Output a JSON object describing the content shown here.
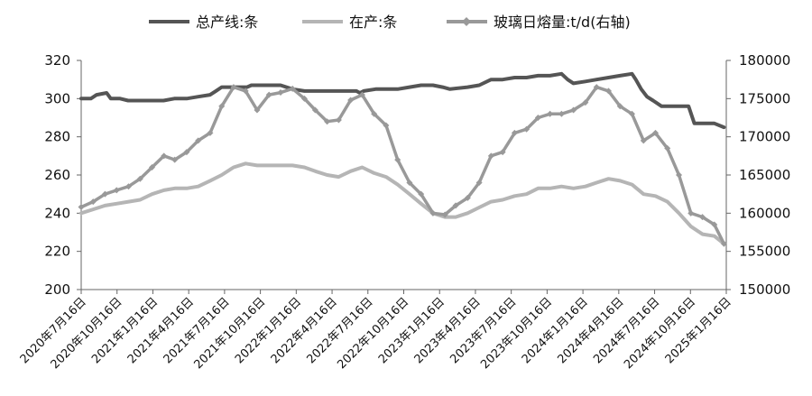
{
  "chart_data": {
    "type": "line",
    "title": "",
    "xlabel": "",
    "ylabel": "",
    "y2label": "",
    "legend_position": "top",
    "grid": false,
    "left_axis": {
      "ylim": [
        200,
        320
      ],
      "ticks": [
        "200",
        "220",
        "240",
        "260",
        "280",
        "300",
        "320"
      ]
    },
    "right_axis": {
      "ylim": [
        150000,
        180000
      ],
      "ticks": [
        "150000",
        "155000",
        "160000",
        "165000",
        "170000",
        "175000",
        "180000"
      ]
    },
    "x_tick_labels": [
      "2020年7月16日",
      "2020年10月16日",
      "2021年1月16日",
      "2021年4月16日",
      "2021年7月16日",
      "2021年10月16日",
      "2022年1月16日",
      "2022年4月16日",
      "2022年7月16日",
      "2022年10月16日",
      "2023年1月16日",
      "2023年4月16日",
      "2023年7月16日",
      "2023年10月16日",
      "2024年1月16日",
      "2024年4月16日",
      "2024年7月16日",
      "2024年10月16日",
      "2025年1月16日"
    ],
    "series": [
      {
        "name": "总产线:条",
        "axis": "left",
        "color": "#555555",
        "points": [
          [
            "2020-07-16",
            300
          ],
          [
            "2020-08-10",
            300
          ],
          [
            "2020-08-25",
            302
          ],
          [
            "2020-09-20",
            303
          ],
          [
            "2020-10-01",
            300
          ],
          [
            "2020-10-25",
            300
          ],
          [
            "2020-11-15",
            299
          ],
          [
            "2021-01-16",
            299
          ],
          [
            "2021-02-15",
            299
          ],
          [
            "2021-03-15",
            300
          ],
          [
            "2021-04-16",
            300
          ],
          [
            "2021-05-16",
            301
          ],
          [
            "2021-06-16",
            302
          ],
          [
            "2021-07-01",
            304
          ],
          [
            "2021-07-16",
            306
          ],
          [
            "2021-08-20",
            306
          ],
          [
            "2021-09-20",
            306
          ],
          [
            "2021-10-01",
            307
          ],
          [
            "2021-11-16",
            307
          ],
          [
            "2021-12-16",
            307
          ],
          [
            "2022-01-16",
            305
          ],
          [
            "2022-02-16",
            304
          ],
          [
            "2022-04-16",
            304
          ],
          [
            "2022-05-16",
            304
          ],
          [
            "2022-07-01",
            304
          ],
          [
            "2022-07-10",
            303
          ],
          [
            "2022-07-20",
            304
          ],
          [
            "2022-08-20",
            305
          ],
          [
            "2022-09-16",
            305
          ],
          [
            "2022-10-16",
            305
          ],
          [
            "2022-11-16",
            306
          ],
          [
            "2022-12-16",
            307
          ],
          [
            "2023-01-16",
            307
          ],
          [
            "2023-02-10",
            306
          ],
          [
            "2023-03-01",
            305
          ],
          [
            "2023-04-16",
            306
          ],
          [
            "2023-05-16",
            307
          ],
          [
            "2023-06-16",
            310
          ],
          [
            "2023-07-16",
            310
          ],
          [
            "2023-08-16",
            311
          ],
          [
            "2023-09-16",
            311
          ],
          [
            "2023-10-16",
            312
          ],
          [
            "2023-11-16",
            312
          ],
          [
            "2023-12-16",
            313
          ],
          [
            "2024-01-01",
            310
          ],
          [
            "2024-01-16",
            308
          ],
          [
            "2024-02-16",
            309
          ],
          [
            "2024-03-16",
            310
          ],
          [
            "2024-04-16",
            311
          ],
          [
            "2024-05-16",
            312
          ],
          [
            "2024-06-16",
            313
          ],
          [
            "2024-06-26",
            310
          ],
          [
            "2024-07-10",
            305
          ],
          [
            "2024-07-25",
            301
          ],
          [
            "2024-08-10",
            299
          ],
          [
            "2024-09-01",
            296
          ],
          [
            "2024-10-01",
            296
          ],
          [
            "2024-10-16",
            296
          ],
          [
            "2024-11-10",
            296
          ],
          [
            "2024-11-25",
            287
          ],
          [
            "2025-01-16",
            287
          ],
          [
            "2025-02-10",
            285
          ]
        ]
      },
      {
        "name": "在产:条",
        "axis": "left",
        "color": "#b5b5b5",
        "points": [
          [
            "2020-07-16",
            240
          ],
          [
            "2020-08-16",
            242
          ],
          [
            "2020-09-16",
            244
          ],
          [
            "2020-10-16",
            245
          ],
          [
            "2020-11-16",
            246
          ],
          [
            "2020-12-16",
            247
          ],
          [
            "2021-01-16",
            250
          ],
          [
            "2021-02-16",
            252
          ],
          [
            "2021-03-16",
            253
          ],
          [
            "2021-04-16",
            253
          ],
          [
            "2021-05-16",
            254
          ],
          [
            "2021-06-16",
            257
          ],
          [
            "2021-07-16",
            260
          ],
          [
            "2021-08-16",
            264
          ],
          [
            "2021-09-16",
            266
          ],
          [
            "2021-10-16",
            265
          ],
          [
            "2021-11-16",
            265
          ],
          [
            "2021-12-16",
            265
          ],
          [
            "2022-01-16",
            265
          ],
          [
            "2022-02-16",
            264
          ],
          [
            "2022-03-16",
            262
          ],
          [
            "2022-04-16",
            260
          ],
          [
            "2022-05-16",
            259
          ],
          [
            "2022-06-16",
            262
          ],
          [
            "2022-07-16",
            264
          ],
          [
            "2022-08-16",
            261
          ],
          [
            "2022-09-16",
            259
          ],
          [
            "2022-10-16",
            255
          ],
          [
            "2022-11-16",
            250
          ],
          [
            "2022-12-16",
            245
          ],
          [
            "2023-01-16",
            240
          ],
          [
            "2023-02-16",
            238
          ],
          [
            "2023-03-16",
            238
          ],
          [
            "2023-04-16",
            240
          ],
          [
            "2023-05-16",
            243
          ],
          [
            "2023-06-16",
            246
          ],
          [
            "2023-07-16",
            247
          ],
          [
            "2023-08-16",
            249
          ],
          [
            "2023-09-16",
            250
          ],
          [
            "2023-10-16",
            253
          ],
          [
            "2023-11-16",
            253
          ],
          [
            "2023-12-16",
            254
          ],
          [
            "2024-01-16",
            253
          ],
          [
            "2024-02-16",
            254
          ],
          [
            "2024-03-16",
            256
          ],
          [
            "2024-04-16",
            258
          ],
          [
            "2024-05-16",
            257
          ],
          [
            "2024-06-16",
            255
          ],
          [
            "2024-07-16",
            250
          ],
          [
            "2024-08-16",
            249
          ],
          [
            "2024-09-16",
            246
          ],
          [
            "2024-10-16",
            240
          ],
          [
            "2024-11-16",
            233
          ],
          [
            "2024-12-16",
            229
          ],
          [
            "2025-01-16",
            228
          ],
          [
            "2025-02-10",
            224
          ]
        ]
      },
      {
        "name": "玻璃日熔量:t/d(右轴)",
        "axis": "right",
        "color": "#999999",
        "marker": "diamond",
        "points": [
          [
            "2020-07-16",
            160800
          ],
          [
            "2020-08-16",
            161500
          ],
          [
            "2020-09-16",
            162500
          ],
          [
            "2020-10-16",
            163000
          ],
          [
            "2020-11-16",
            163500
          ],
          [
            "2020-12-16",
            164500
          ],
          [
            "2021-01-16",
            166000
          ],
          [
            "2021-02-16",
            167500
          ],
          [
            "2021-03-16",
            167000
          ],
          [
            "2021-04-16",
            168000
          ],
          [
            "2021-05-16",
            169500
          ],
          [
            "2021-06-16",
            170500
          ],
          [
            "2021-07-16",
            174000
          ],
          [
            "2021-08-16",
            176500
          ],
          [
            "2021-09-16",
            176000
          ],
          [
            "2021-10-16",
            173500
          ],
          [
            "2021-11-16",
            175500
          ],
          [
            "2021-12-16",
            175800
          ],
          [
            "2022-01-16",
            176300
          ],
          [
            "2022-02-16",
            175000
          ],
          [
            "2022-03-16",
            173500
          ],
          [
            "2022-04-16",
            172000
          ],
          [
            "2022-05-16",
            172200
          ],
          [
            "2022-06-16",
            174800
          ],
          [
            "2022-07-16",
            175500
          ],
          [
            "2022-08-16",
            173000
          ],
          [
            "2022-09-16",
            171500
          ],
          [
            "2022-10-16",
            167000
          ],
          [
            "2022-11-16",
            164000
          ],
          [
            "2022-12-16",
            162500
          ],
          [
            "2023-01-16",
            160000
          ],
          [
            "2023-02-16",
            159800
          ],
          [
            "2023-03-16",
            161000
          ],
          [
            "2023-04-16",
            162000
          ],
          [
            "2023-05-16",
            164000
          ],
          [
            "2023-06-16",
            167500
          ],
          [
            "2023-07-16",
            168000
          ],
          [
            "2023-08-16",
            170500
          ],
          [
            "2023-09-16",
            171000
          ],
          [
            "2023-10-16",
            172500
          ],
          [
            "2023-11-16",
            173000
          ],
          [
            "2023-12-16",
            173000
          ],
          [
            "2024-01-16",
            173500
          ],
          [
            "2024-02-16",
            174500
          ],
          [
            "2024-03-16",
            176500
          ],
          [
            "2024-04-16",
            176000
          ],
          [
            "2024-05-16",
            174000
          ],
          [
            "2024-06-16",
            173000
          ],
          [
            "2024-07-16",
            169500
          ],
          [
            "2024-08-16",
            170500
          ],
          [
            "2024-09-16",
            168500
          ],
          [
            "2024-10-16",
            165000
          ],
          [
            "2024-11-16",
            160000
          ],
          [
            "2024-12-16",
            159500
          ],
          [
            "2025-01-16",
            158500
          ],
          [
            "2025-02-10",
            156000
          ]
        ]
      }
    ]
  }
}
